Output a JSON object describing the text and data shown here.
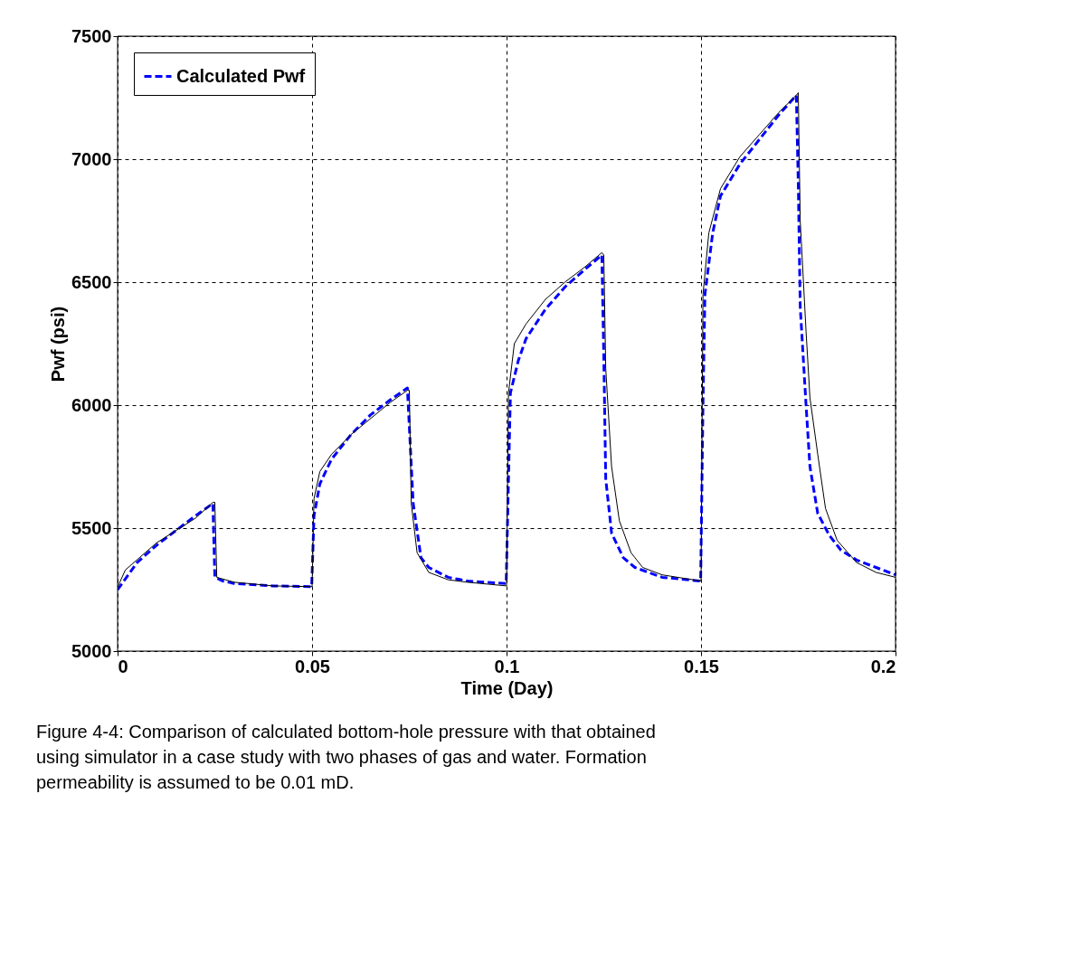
{
  "chart_data": {
    "type": "line",
    "xlabel": "Time (Day)",
    "ylabel": "Pwf (psi)",
    "xlim": [
      0,
      0.2
    ],
    "xticks": [
      0,
      0.05,
      0.1,
      0.15,
      0.2
    ],
    "ylim": [
      5000,
      7500
    ],
    "yticks": [
      5000,
      5500,
      6000,
      6500,
      7000,
      7500
    ],
    "grid": true,
    "legend": "top left",
    "annotations": [
      "Figure 4-4: Comparison of calculated bottom-hole pressure with that obtained using simulator in a case study with two phases of gas and water. Formation permeability is assumed to be 0.01 mD."
    ],
    "series": [
      {
        "name": "Calculated Pwf",
        "color": "#0000ff",
        "line_style": "dashed",
        "x": [
          0,
          0.005,
          0.01,
          0.015,
          0.02,
          0.0245,
          0.025,
          0.027,
          0.03,
          0.04,
          0.0499,
          0.0505,
          0.052,
          0.055,
          0.06,
          0.065,
          0.07,
          0.0745,
          0.076,
          0.078,
          0.08,
          0.085,
          0.09,
          0.0999,
          0.1005,
          0.101,
          0.103,
          0.105,
          0.11,
          0.115,
          0.12,
          0.1245,
          0.125,
          0.1255,
          0.127,
          0.13,
          0.133,
          0.14,
          0.1499,
          0.1505,
          0.151,
          0.153,
          0.155,
          0.16,
          0.165,
          0.17,
          0.1745,
          0.175,
          0.1755,
          0.177,
          0.178,
          0.18,
          0.183,
          0.186,
          0.19,
          0.195,
          0.2
        ],
        "values": [
          5250,
          5360,
          5430,
          5490,
          5550,
          5600,
          5300,
          5285,
          5275,
          5265,
          5262,
          5550,
          5680,
          5780,
          5880,
          5960,
          6020,
          6070,
          5600,
          5380,
          5340,
          5300,
          5285,
          5275,
          5700,
          6050,
          6180,
          6270,
          6390,
          6480,
          6550,
          6610,
          6200,
          5700,
          5480,
          5380,
          5340,
          5300,
          5285,
          6000,
          6450,
          6700,
          6850,
          6980,
          7080,
          7180,
          7260,
          6900,
          6400,
          6000,
          5750,
          5560,
          5470,
          5410,
          5370,
          5340,
          5310
        ]
      },
      {
        "color": "#000000",
        "line_style": "solid",
        "x": [
          0,
          0.002,
          0.01,
          0.02,
          0.0245,
          0.025,
          0.0255,
          0.03,
          0.04,
          0.05,
          0.0505,
          0.052,
          0.055,
          0.06,
          0.07,
          0.0745,
          0.075,
          0.0755,
          0.077,
          0.08,
          0.085,
          0.09,
          0.1,
          0.1005,
          0.102,
          0.105,
          0.11,
          0.115,
          0.12,
          0.1245,
          0.125,
          0.1255,
          0.127,
          0.129,
          0.132,
          0.135,
          0.14,
          0.15,
          0.1505,
          0.152,
          0.155,
          0.16,
          0.165,
          0.17,
          0.1745,
          0.175,
          0.1755,
          0.177,
          0.178,
          0.18,
          0.182,
          0.185,
          0.19,
          0.195,
          0.2
        ],
        "values": [
          5260,
          5330,
          5440,
          5540,
          5605,
          5605,
          5300,
          5280,
          5265,
          5262,
          5620,
          5730,
          5800,
          5880,
          6010,
          6060,
          6060,
          5600,
          5400,
          5320,
          5290,
          5280,
          5265,
          6050,
          6250,
          6330,
          6430,
          6500,
          6560,
          6620,
          6610,
          6150,
          5750,
          5530,
          5400,
          5340,
          5310,
          5285,
          6450,
          6700,
          6880,
          7010,
          7100,
          7190,
          7260,
          7270,
          6750,
          6300,
          6030,
          5800,
          5580,
          5450,
          5360,
          5320,
          5300
        ]
      }
    ]
  }
}
